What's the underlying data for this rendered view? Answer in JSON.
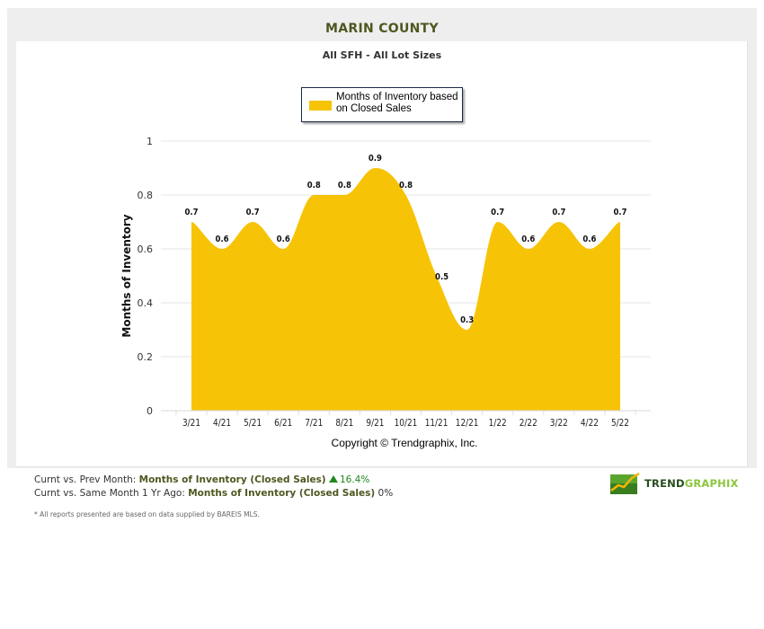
{
  "header": {
    "title": "MARIN COUNTY",
    "subtitle": "All SFH - All Lot Sizes"
  },
  "legend": {
    "label": "Months of Inventory based on Closed Sales",
    "color": "#f7c306"
  },
  "copyright": "Copyright © Trendgraphix, Inc.",
  "stats": {
    "line1_prefix": "Curnt vs. Prev Month: ",
    "line1_metric": "Months of Inventory (Closed Sales)",
    "line1_value": "16.4%",
    "line1_direction": "up",
    "line2_prefix": "Curnt vs. Same Month 1 Yr Ago: ",
    "line2_metric": "Months of Inventory (Closed Sales)",
    "line2_value": "0%"
  },
  "footnote": "* All reports presented are based on data supplied by BAREIS MLS.",
  "logo": {
    "part1": "TREND",
    "part2": "GRAPHIX"
  },
  "chart_data": {
    "type": "area",
    "title": "MARIN COUNTY",
    "subtitle": "All SFH - All Lot Sizes",
    "xlabel": "",
    "ylabel": "Months of Inventory",
    "categories": [
      "3/21",
      "4/21",
      "5/21",
      "6/21",
      "7/21",
      "8/21",
      "9/21",
      "10/21",
      "11/21",
      "12/21",
      "1/22",
      "2/22",
      "3/22",
      "4/22",
      "5/22"
    ],
    "series": [
      {
        "name": "Months of Inventory based on Closed Sales",
        "color": "#f7c306",
        "values": [
          0.7,
          0.6,
          0.7,
          0.6,
          0.8,
          0.8,
          0.9,
          0.8,
          0.5,
          0.3,
          0.7,
          0.6,
          0.7,
          0.6,
          0.7
        ]
      }
    ],
    "ylim": [
      0,
      1
    ],
    "yticks": [
      0,
      0.2,
      0.4,
      0.6,
      0.8,
      1
    ],
    "grid": true,
    "legend_position": "top",
    "data_labels": true
  }
}
